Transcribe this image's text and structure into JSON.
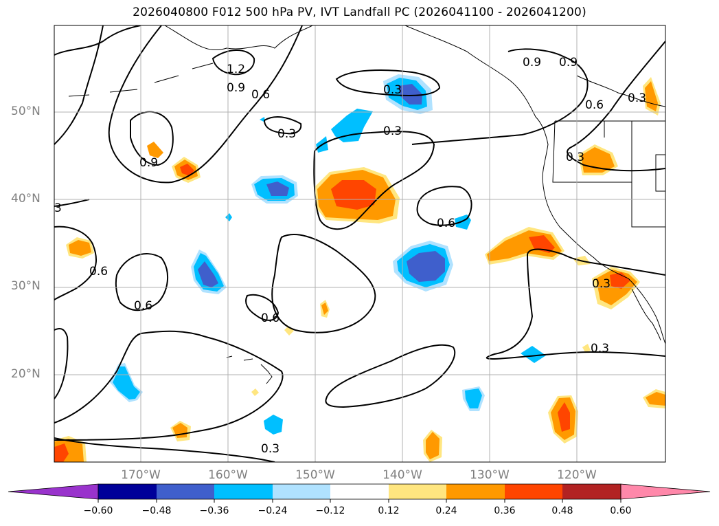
{
  "title": "2026040800 F012 500 hPa PV, IVT Landfall PC (2026041100 - 2026041200)",
  "lat_labels": [
    "50°N",
    "40°N",
    "30°N",
    "20°N"
  ],
  "lon_labels": [
    "170°W",
    "160°W",
    "150°W",
    "140°W",
    "130°W",
    "120°W"
  ],
  "colorbar": {
    "ticks": [
      "−0.60",
      "−0.48",
      "−0.36",
      "−0.24",
      "−0.12",
      "0.12",
      "0.24",
      "0.36",
      "0.48",
      "0.60"
    ],
    "colors": [
      "#9933cc",
      "#000099",
      "#3f5fcc",
      "#00bfff",
      "#b0e2ff",
      "#ffffff",
      "#ffe680",
      "#ff9900",
      "#ff4500",
      "#b22222",
      "#ff88aa"
    ]
  },
  "contour_labels": [
    "1.2",
    "0.9",
    "0.6",
    "0.3",
    "0.3",
    "0.9",
    "0.9",
    "0.6",
    "0.3",
    "0.3",
    "0.9",
    "3",
    "0.6",
    "0.6",
    "0.6",
    "0.3",
    "0.3",
    "0.3",
    "0.6",
    "0.3"
  ],
  "colors": {
    "grid": "#b0b0b0",
    "axis_label": "#7f7f7f"
  }
}
